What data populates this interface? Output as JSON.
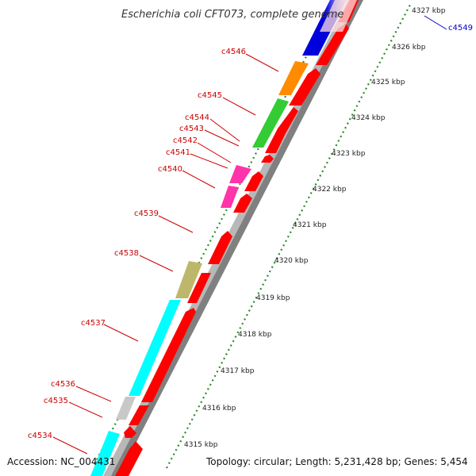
{
  "title": "Escherichia coli CFT073, complete genome",
  "footer": {
    "accession": "Accession: NC_004431",
    "topology": "Topology: circular; Length: 5,231,428 bp; Genes: 5,454"
  },
  "colors": {
    "gene_label": "#cc0000",
    "gene_label_alt": "#0000cc",
    "backbone": "#b8b8b8",
    "backbone_shadow": "#808080",
    "tick": "#2a8a2a",
    "cds": "#ff0000",
    "blue": "#0000dd",
    "orange": "#ff8c00",
    "green": "#33cc33",
    "magenta": "#ff33aa",
    "khaki": "#bdb76b",
    "cyan": "#00ffff",
    "grey": "#c8c8c8"
  },
  "kbp_ticks": [
    "4315 kbp",
    "4316 kbp",
    "4317 kbp",
    "4318 kbp",
    "4319 kbp",
    "4320 kbp",
    "4321 kbp",
    "4322 kbp",
    "4323 kbp",
    "4324 kbp",
    "4325 kbp",
    "4326 kbp",
    "4327 kbp"
  ],
  "gene_labels": [
    {
      "id": "c4534",
      "text": "c4534",
      "color": "red"
    },
    {
      "id": "c4535",
      "text": "c4535",
      "color": "red"
    },
    {
      "id": "c4536",
      "text": "c4536",
      "color": "red"
    },
    {
      "id": "c4537",
      "text": "c4537",
      "color": "red"
    },
    {
      "id": "c4538",
      "text": "c4538",
      "color": "red"
    },
    {
      "id": "c4539",
      "text": "c4539",
      "color": "red"
    },
    {
      "id": "c4540",
      "text": "c4540",
      "color": "red"
    },
    {
      "id": "c4541",
      "text": "c4541",
      "color": "red"
    },
    {
      "id": "c4542",
      "text": "c4542",
      "color": "red"
    },
    {
      "id": "c4543",
      "text": "c4543",
      "color": "red"
    },
    {
      "id": "c4544",
      "text": "c4544",
      "color": "red"
    },
    {
      "id": "c4545",
      "text": "c4545",
      "color": "red"
    },
    {
      "id": "c4546",
      "text": "c4546",
      "color": "red"
    },
    {
      "id": "c4549",
      "text": "c4549",
      "color": "blue"
    }
  ]
}
